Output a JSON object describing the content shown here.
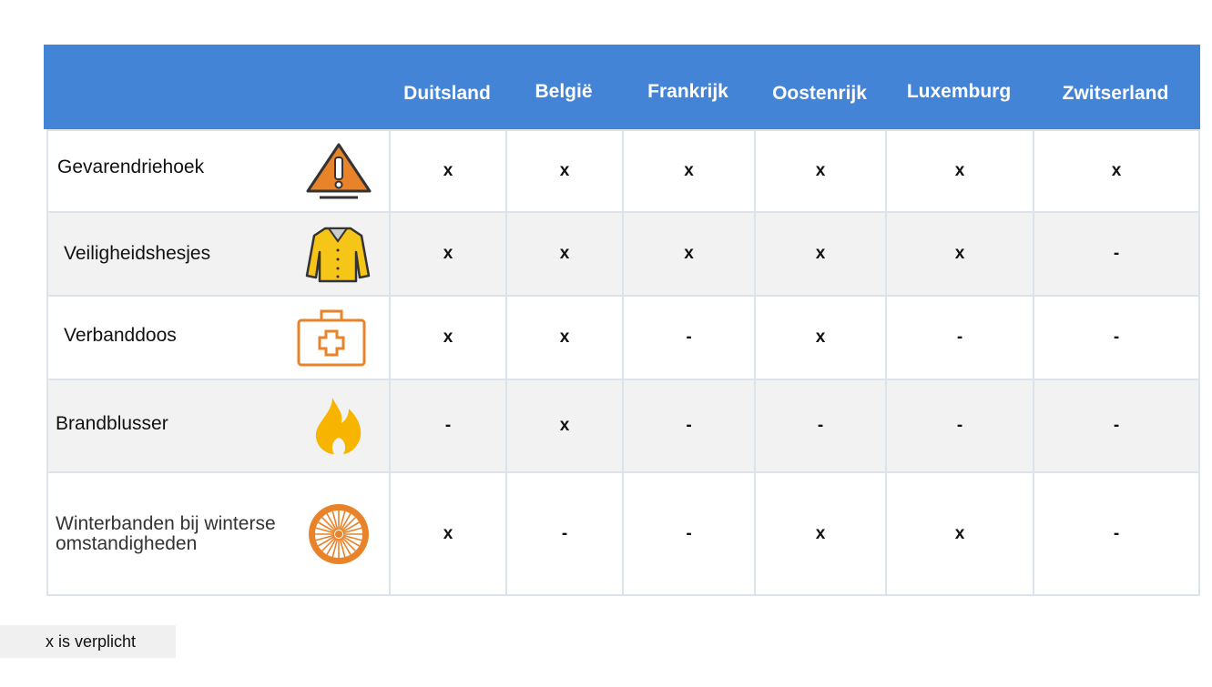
{
  "header": {
    "columns": [
      "Duitsland",
      "België",
      "Frankrijk",
      "Oostenrijk",
      "Luxemburg",
      "Zwitserland"
    ]
  },
  "colors": {
    "header": "#4384d6",
    "orange": "#e8832a",
    "yellow": "#f5c518"
  },
  "rows": [
    {
      "label": "Gevarendriehoek",
      "icon": "warning-triangle-icon",
      "values": [
        "x",
        "x",
        "x",
        "x",
        "x",
        "x"
      ]
    },
    {
      "label": "Veiligheidshesjes",
      "icon": "safety-vest-icon",
      "values": [
        "x",
        "x",
        "x",
        "x",
        "x",
        "-"
      ]
    },
    {
      "label": "Verbanddoos",
      "icon": "first-aid-kit-icon",
      "values": [
        "x",
        "x",
        "-",
        "x",
        "-",
        "-"
      ]
    },
    {
      "label": "Brandblusser",
      "icon": "fire-icon",
      "values": [
        "-",
        "x",
        "-",
        "-",
        "-",
        "-"
      ]
    },
    {
      "label": "Winterbanden bij winterse omstandigheden",
      "icon": "wheel-icon",
      "values": [
        "x",
        "-",
        "-",
        "x",
        "x",
        "-"
      ]
    }
  ],
  "legend": "x is verplicht"
}
